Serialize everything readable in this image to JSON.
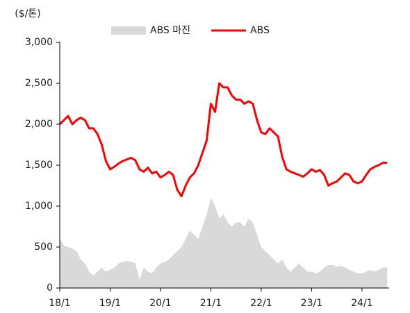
{
  "chart_data": {
    "type": "line-area",
    "unit_label": "($/톤)",
    "categories": [
      "18/1",
      null,
      null,
      null,
      null,
      null,
      null,
      null,
      null,
      null,
      null,
      null,
      "19/1",
      null,
      null,
      null,
      null,
      null,
      null,
      null,
      null,
      null,
      null,
      null,
      "20/1",
      null,
      null,
      null,
      null,
      null,
      null,
      null,
      null,
      null,
      null,
      null,
      "21/1",
      null,
      null,
      null,
      null,
      null,
      null,
      null,
      null,
      null,
      null,
      null,
      "22/1",
      null,
      null,
      null,
      null,
      null,
      null,
      null,
      null,
      null,
      null,
      null,
      "23/1",
      null,
      null,
      null,
      null,
      null,
      null,
      null,
      null,
      null,
      null,
      null,
      "24/1",
      null,
      null,
      null,
      null,
      null,
      null
    ],
    "series": [
      {
        "name": "ABS 마진",
        "kind": "area",
        "color": "#d9d9d9",
        "values": [
          600,
          520,
          500,
          480,
          450,
          350,
          300,
          200,
          150,
          200,
          250,
          200,
          220,
          250,
          300,
          320,
          330,
          320,
          300,
          100,
          250,
          200,
          180,
          250,
          300,
          320,
          350,
          400,
          450,
          500,
          600,
          700,
          650,
          600,
          750,
          900,
          1100,
          1000,
          850,
          900,
          800,
          750,
          800,
          800,
          750,
          850,
          800,
          650,
          500,
          450,
          400,
          350,
          300,
          350,
          250,
          200,
          250,
          300,
          250,
          200,
          200,
          180,
          200,
          250,
          280,
          280,
          260,
          270,
          250,
          220,
          200,
          180,
          180,
          200,
          220,
          200,
          220,
          250,
          250
        ]
      },
      {
        "name": "ABS",
        "kind": "line",
        "color": "#ff0000",
        "values": [
          2000,
          2050,
          2100,
          2000,
          2050,
          2080,
          2050,
          1950,
          1950,
          1880,
          1750,
          1550,
          1450,
          1480,
          1520,
          1550,
          1570,
          1590,
          1560,
          1450,
          1420,
          1470,
          1400,
          1420,
          1350,
          1380,
          1420,
          1380,
          1200,
          1120,
          1250,
          1350,
          1400,
          1500,
          1650,
          1800,
          2250,
          2150,
          2500,
          2450,
          2450,
          2350,
          2300,
          2300,
          2250,
          2280,
          2250,
          2050,
          1900,
          1880,
          1950,
          1900,
          1850,
          1600,
          1450,
          1420,
          1400,
          1380,
          1360,
          1400,
          1450,
          1420,
          1440,
          1380,
          1250,
          1280,
          1300,
          1350,
          1400,
          1380,
          1300,
          1280,
          1300,
          1380,
          1450,
          1480,
          1500,
          1530,
          1530
        ]
      }
    ],
    "ylim": [
      0,
      3000
    ],
    "yticks": [
      0,
      500,
      {
        "value": 1000,
        "label": "1,000"
      },
      {
        "value": 1500,
        "label": "1,500"
      },
      {
        "value": 2000,
        "label": "2,000"
      },
      {
        "value": 2500,
        "label": "2,500"
      },
      {
        "value": 3000,
        "label": "3,000"
      }
    ],
    "grid": false
  }
}
